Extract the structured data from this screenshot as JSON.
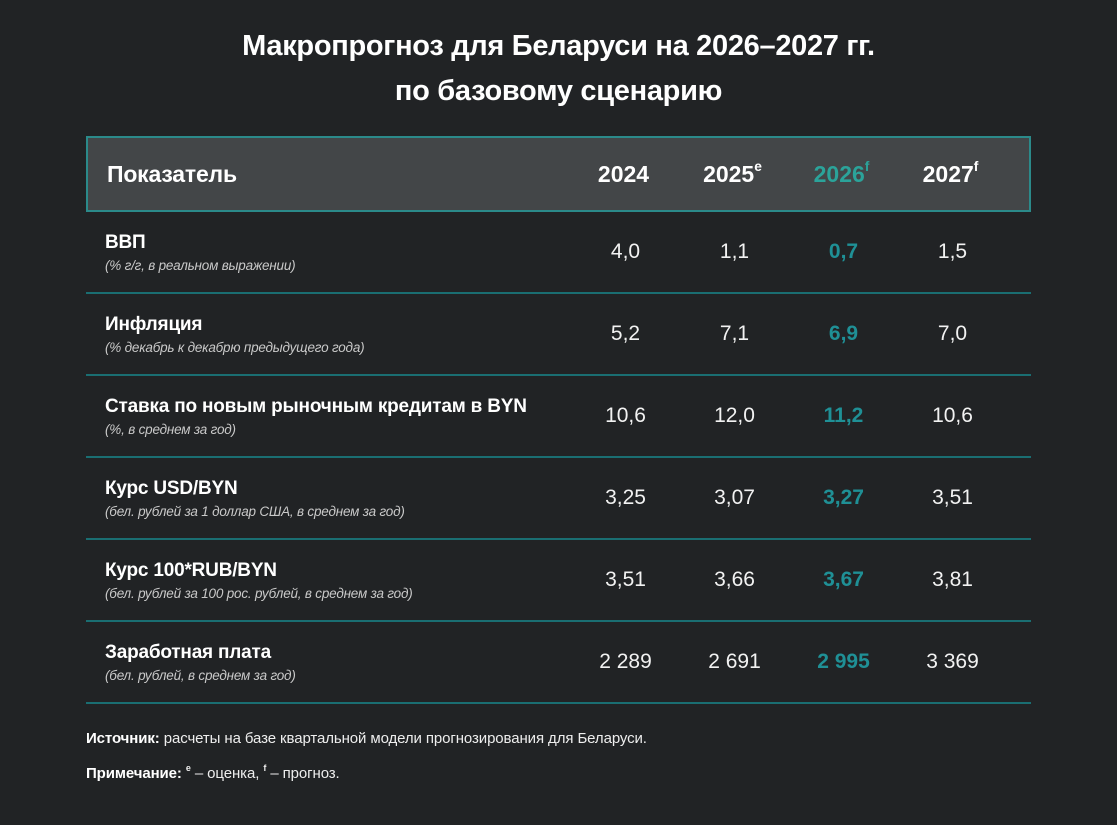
{
  "title": {
    "line1": "Макропрогноз для Беларуси на 2026–2027 гг.",
    "line2": "по базовому сценарию"
  },
  "colors": {
    "background": "#212325",
    "header_background": "#434648",
    "header_border_teal": "#2b8a8a",
    "accent_teal_header": "#2ba39a",
    "accent_teal_value": "#1f9096",
    "row_divider_teal": "#1a6e72",
    "text_white": "#ffffff",
    "subtext_gray": "#c9c9c9"
  },
  "table": {
    "header": {
      "indicator": "Показатель",
      "years": [
        {
          "label": "2024",
          "sup": "",
          "highlight": false
        },
        {
          "label": "2025",
          "sup": "e",
          "highlight": false
        },
        {
          "label": "2026",
          "sup": "f",
          "highlight": true
        },
        {
          "label": "2027",
          "sup": "f",
          "highlight": false
        }
      ]
    },
    "highlight_column_index": 2,
    "rows": [
      {
        "label": "ВВП",
        "sublabel": "(% г/г, в реальном выражении)",
        "values": [
          "4,0",
          "1,1",
          "0,7",
          "1,5"
        ]
      },
      {
        "label": "Инфляция",
        "sublabel": "(% декабрь к декабрю предыдущего года)",
        "values": [
          "5,2",
          "7,1",
          "6,9",
          "7,0"
        ]
      },
      {
        "label": "Ставка по новым рыночным кредитам в BYN",
        "sublabel": "(%, в среднем за год)",
        "values": [
          "10,6",
          "12,0",
          "11,2",
          "10,6"
        ]
      },
      {
        "label": "Курс USD/BYN",
        "sublabel": "(бел. рублей за 1 доллар США, в среднем за год)",
        "values": [
          "3,25",
          "3,07",
          "3,27",
          "3,51"
        ]
      },
      {
        "label": "Курс 100*RUB/BYN",
        "sublabel": "(бел. рублей за 100 рос. рублей, в среднем за год)",
        "values": [
          "3,51",
          "3,66",
          "3,67",
          "3,81"
        ]
      },
      {
        "label": "Заработная плата",
        "sublabel": "(бел. рублей, в среднем за год)",
        "values": [
          "2 289",
          "2 691",
          "2 995",
          "3 369"
        ]
      }
    ]
  },
  "footer": {
    "source_label": "Источник:",
    "source_text": " расчеты на базе квартальной модели прогнозирования для Беларуси.",
    "note_label": "Примечание:",
    "note_sup_e": "e",
    "note_text_e": " – оценка, ",
    "note_sup_f": "f",
    "note_text_f": " – прогноз."
  },
  "chart_data": {
    "type": "table",
    "title": "Макропрогноз для Беларуси на 2026–2027 гг. по базовому сценарию",
    "columns": [
      "Показатель",
      "2024",
      "2025 (e)",
      "2026 (f)",
      "2027 (f)"
    ],
    "rows": [
      {
        "indicator": "ВВП (% г/г, в реальном выражении)",
        "values": [
          4.0,
          1.1,
          0.7,
          1.5
        ]
      },
      {
        "indicator": "Инфляция (% декабрь к декабрю предыдущего года)",
        "values": [
          5.2,
          7.1,
          6.9,
          7.0
        ]
      },
      {
        "indicator": "Ставка по новым рыночным кредитам в BYN (%, в среднем за год)",
        "values": [
          10.6,
          12.0,
          11.2,
          10.6
        ]
      },
      {
        "indicator": "Курс USD/BYN (бел. рублей за 1 доллар США, в среднем за год)",
        "values": [
          3.25,
          3.07,
          3.27,
          3.51
        ]
      },
      {
        "indicator": "Курс 100*RUB/BYN (бел. рублей за 100 рос. рублей, в среднем за год)",
        "values": [
          3.51,
          3.66,
          3.67,
          3.81
        ]
      },
      {
        "indicator": "Заработная плата (бел. рублей, в среднем за год)",
        "values": [
          2289,
          2691,
          2995,
          3369
        ]
      }
    ],
    "highlighted_column": "2026 (f)",
    "source": "расчеты на базе квартальной модели прогнозирования для Беларуси",
    "notes": "e – оценка, f – прогноз"
  }
}
